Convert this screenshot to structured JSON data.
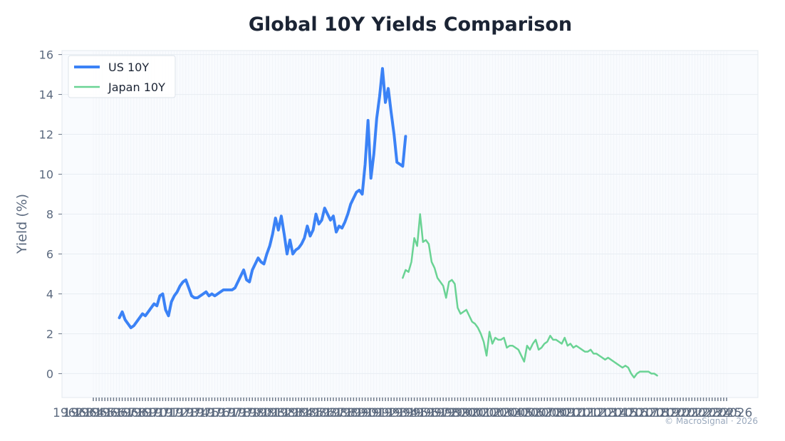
{
  "chart_data": {
    "type": "line",
    "title": "Global 10Y Yields Comparison",
    "xlabel": "",
    "ylabel": "Yield (%)",
    "ylim": [
      -1.2,
      16.2
    ],
    "yticks": [
      0,
      2,
      4,
      6,
      8,
      10,
      12,
      14,
      16
    ],
    "grid": true,
    "legend_position": "top-left",
    "x_period_count": 220,
    "x_tick_labels": [
      "1962",
      "1963",
      "1964",
      "1965",
      "1966",
      "1967",
      "1968",
      "1969",
      "1970",
      "1971",
      "1972",
      "1973",
      "1974",
      "1975",
      "1976",
      "1977",
      "1978",
      "1979",
      "1980",
      "1981",
      "1982",
      "1983",
      "1984",
      "1985",
      "1986",
      "1987",
      "1988",
      "1989",
      "1990",
      "1991",
      "1992",
      "1993",
      "1994",
      "1995",
      "1996",
      "1997",
      "1998",
      "1999",
      "2000",
      "2001",
      "2002",
      "2003",
      "2004",
      "2005",
      "2006",
      "2007",
      "2008",
      "2009",
      "2010",
      "2011",
      "2012",
      "2013",
      "2014",
      "2015",
      "2016",
      "2017",
      "2018",
      "2019",
      "2020",
      "2021",
      "2022",
      "2023",
      "2024",
      "2025",
      "2026"
    ],
    "series": [
      {
        "name": "US 10Y",
        "color": "#3b82f6",
        "start_index": 9,
        "values": [
          2.8,
          3.1,
          2.7,
          2.5,
          2.3,
          2.4,
          2.6,
          2.8,
          3.0,
          2.9,
          3.1,
          3.3,
          3.5,
          3.4,
          3.9,
          4.0,
          3.2,
          2.9,
          3.6,
          3.9,
          4.1,
          4.4,
          4.6,
          4.7,
          4.3,
          3.9,
          3.8,
          3.8,
          3.9,
          4.0,
          4.1,
          3.9,
          4.0,
          3.9,
          4.0,
          4.1,
          4.2,
          4.2,
          4.2,
          4.2,
          4.3,
          4.6,
          4.9,
          5.2,
          4.7,
          4.6,
          5.2,
          5.5,
          5.8,
          5.6,
          5.5,
          6.0,
          6.4,
          7.0,
          7.8,
          7.2,
          7.9,
          7.0,
          6.0,
          6.7,
          6.0,
          6.2,
          6.3,
          6.5,
          6.8,
          7.4,
          6.9,
          7.2,
          8.0,
          7.5,
          7.7,
          8.3,
          8.0,
          7.7,
          7.9,
          7.1,
          7.4,
          7.3,
          7.6,
          8.0,
          8.5,
          8.8,
          9.1,
          9.2,
          9.0,
          10.5,
          12.7,
          9.8,
          11.0,
          12.8,
          13.9,
          15.3,
          13.6,
          14.3,
          13.1,
          12.0,
          10.6,
          10.5,
          10.4,
          11.9
        ]
      },
      {
        "name": "Japan 10Y",
        "color": "#6ad394",
        "start_index": 107,
        "values": [
          4.8,
          5.2,
          5.1,
          5.6,
          6.8,
          6.4,
          8.0,
          6.6,
          6.7,
          6.5,
          5.6,
          5.3,
          4.8,
          4.6,
          4.4,
          3.8,
          4.6,
          4.7,
          4.5,
          3.3,
          3.0,
          3.1,
          3.2,
          2.9,
          2.6,
          2.5,
          2.3,
          2.0,
          1.6,
          0.9,
          2.1,
          1.5,
          1.8,
          1.7,
          1.7,
          1.8,
          1.3,
          1.4,
          1.4,
          1.3,
          1.2,
          0.9,
          0.6,
          1.4,
          1.2,
          1.5,
          1.7,
          1.2,
          1.3,
          1.5,
          1.6,
          1.9,
          1.7,
          1.7,
          1.6,
          1.5,
          1.8,
          1.4,
          1.5,
          1.3,
          1.4,
          1.3,
          1.2,
          1.1,
          1.1,
          1.2,
          1.0,
          1.0,
          0.9,
          0.8,
          0.7,
          0.8,
          0.7,
          0.6,
          0.5,
          0.4,
          0.3,
          0.4,
          0.3,
          0.0,
          -0.2,
          0.0,
          0.1,
          0.1,
          0.1,
          0.1,
          0.0,
          0.0,
          -0.1
        ]
      }
    ]
  },
  "footer": {
    "credit": "© MacroSignal · 2026"
  }
}
